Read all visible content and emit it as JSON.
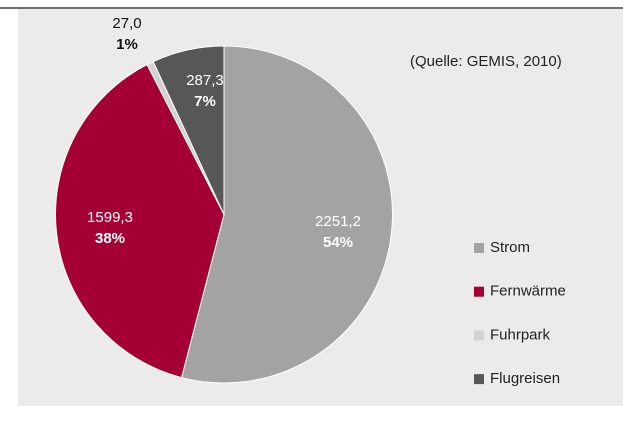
{
  "chart_data": {
    "type": "pie",
    "source": "(Quelle: GEMIS, 2010)",
    "categories": [
      "Strom",
      "Fernwärme",
      "Fuhrpark",
      "Flugreisen"
    ],
    "values": [
      2251.2,
      1599.3,
      27.0,
      287.3
    ],
    "value_labels": [
      "2251,2",
      "1599,3",
      "27,0",
      "287,3"
    ],
    "percent_labels": [
      "54%",
      "38%",
      "1%",
      "7%"
    ],
    "colors": [
      "#a3a3a3",
      "#a50034",
      "#d2d2d2",
      "#575757"
    ],
    "legend": "right"
  }
}
